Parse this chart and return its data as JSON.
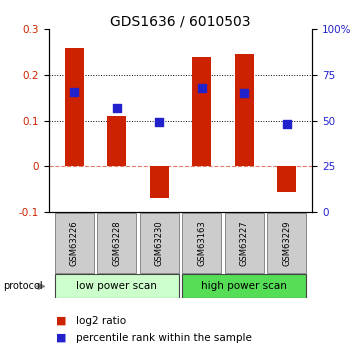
{
  "title": "GDS1636 / 6010503",
  "samples": [
    "GSM63226",
    "GSM63228",
    "GSM63230",
    "GSM63163",
    "GSM63227",
    "GSM63229"
  ],
  "log2_ratio": [
    0.26,
    0.11,
    -0.07,
    0.24,
    0.245,
    -0.055
  ],
  "percentile_rank_left": [
    0.162,
    0.127,
    0.097,
    0.172,
    0.16,
    0.093
  ],
  "bar_color": "#cc2200",
  "dot_color": "#2222cc",
  "ylim_left": [
    -0.1,
    0.3
  ],
  "ylim_right": [
    0,
    100
  ],
  "yticks_left": [
    -0.1,
    0.0,
    0.1,
    0.2,
    0.3
  ],
  "ytick_labels_left": [
    "-0.1",
    "0",
    "0.1",
    "0.2",
    "0.3"
  ],
  "yticks_right": [
    0,
    25,
    50,
    75,
    100
  ],
  "ytick_labels_right": [
    "0",
    "25",
    "50",
    "75",
    "100%"
  ],
  "dotted_lines": [
    0.1,
    0.2
  ],
  "zero_line": 0.0,
  "groups": [
    {
      "label": "low power scan",
      "indices": [
        0,
        1,
        2
      ],
      "color": "#ccffcc"
    },
    {
      "label": "high power scan",
      "indices": [
        3,
        4,
        5
      ],
      "color": "#55dd55"
    }
  ],
  "protocol_label": "protocol",
  "legend": [
    {
      "color": "#cc2200",
      "label": "log2 ratio"
    },
    {
      "color": "#2222cc",
      "label": "percentile rank within the sample"
    }
  ],
  "bar_width": 0.45,
  "dot_size": 40,
  "title_fontsize": 10,
  "tick_fontsize": 7.5,
  "legend_fontsize": 7.5
}
